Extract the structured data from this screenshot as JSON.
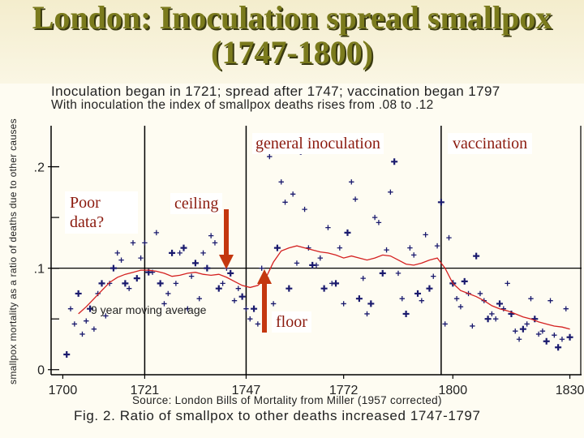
{
  "slide": {
    "title": "London: Inoculation spread smallpox (1747-1800)",
    "subtitle_line1": "Inoculation began in 1721; spread after 1747; vaccination began 1797",
    "subtitle_line2": "With inoculation the index of smallpox deaths rises from .08 to .12",
    "source": "Source: London Bills of Mortality from Miller (1957 corrected)",
    "figure_caption": "Fig. 2. Ratio of smallpox to other deaths increased 1747-1797"
  },
  "annotations": {
    "general_inoculation": "general inoculation",
    "vaccination": "vaccination",
    "poor_data": "Poor data?",
    "ceiling": "ceiling",
    "floor": "floor",
    "moving_average": "9 year moving average"
  },
  "colors": {
    "title": "#7b7b1d",
    "marker": "#1a1a6e",
    "moving_average_line": "#d42020",
    "annotation_text": "#8b1a0e",
    "arrow": "#c4370f"
  },
  "chart_data": {
    "type": "scatter",
    "title": "",
    "ylabel": "smallpox mortality as a ratio of deaths due to other causes",
    "xlabel": "",
    "x_ticks": [
      1700,
      1721,
      1747,
      1772,
      1800,
      1830
    ],
    "y_ticks": [
      {
        "value": 0,
        "label": "0"
      },
      {
        "value": 0.1,
        "label": ".1"
      },
      {
        "value": 0.2,
        "label": ".2"
      }
    ],
    "xlim": [
      1697,
      1833
    ],
    "ylim": [
      -0.005,
      0.25
    ],
    "vertical_lines": [
      1721,
      1747,
      1797
    ],
    "horizontal_line": 0.1,
    "grid": false,
    "series": [
      {
        "name": "",
        "marker": "+",
        "points": [
          [
            1701,
            0.015
          ],
          [
            1702,
            0.06
          ],
          [
            1703,
            0.045
          ],
          [
            1704,
            0.075
          ],
          [
            1705,
            0.035
          ],
          [
            1706,
            0.048
          ],
          [
            1707,
            0.06
          ],
          [
            1708,
            0.04
          ],
          [
            1709,
            0.075
          ],
          [
            1710,
            0.085
          ],
          [
            1711,
            0.053
          ],
          [
            1712,
            0.085
          ],
          [
            1713,
            0.1
          ],
          [
            1714,
            0.115
          ],
          [
            1715,
            0.108
          ],
          [
            1716,
            0.085
          ],
          [
            1717,
            0.08
          ],
          [
            1718,
            0.125
          ],
          [
            1719,
            0.09
          ],
          [
            1720,
            0.11
          ],
          [
            1721,
            0.125
          ],
          [
            1722,
            0.096
          ],
          [
            1723,
            0.096
          ],
          [
            1724,
            0.135
          ],
          [
            1725,
            0.085
          ],
          [
            1726,
            0.065
          ],
          [
            1727,
            0.075
          ],
          [
            1728,
            0.115
          ],
          [
            1729,
            0.085
          ],
          [
            1730,
            0.115
          ],
          [
            1731,
            0.12
          ],
          [
            1732,
            0.06
          ],
          [
            1733,
            0.092
          ],
          [
            1734,
            0.105
          ],
          [
            1735,
            0.07
          ],
          [
            1736,
            0.115
          ],
          [
            1737,
            0.1
          ],
          [
            1738,
            0.132
          ],
          [
            1739,
            0.125
          ],
          [
            1740,
            0.08
          ],
          [
            1741,
            0.085
          ],
          [
            1742,
            0.1
          ],
          [
            1743,
            0.095
          ],
          [
            1744,
            0.068
          ],
          [
            1745,
            0.08
          ],
          [
            1746,
            0.072
          ],
          [
            1747,
            0.06
          ],
          [
            1748,
            0.05
          ],
          [
            1749,
            0.06
          ],
          [
            1750,
            0.045
          ],
          [
            1751,
            0.1
          ],
          [
            1752,
            0.09
          ],
          [
            1753,
            0.21
          ],
          [
            1754,
            0.065
          ],
          [
            1755,
            0.12
          ],
          [
            1756,
            0.185
          ],
          [
            1757,
            0.165
          ],
          [
            1758,
            0.08
          ],
          [
            1759,
            0.173
          ],
          [
            1760,
            0.105
          ],
          [
            1761,
            0.215
          ],
          [
            1762,
            0.158
          ],
          [
            1763,
            0.12
          ],
          [
            1764,
            0.103
          ],
          [
            1765,
            0.103
          ],
          [
            1766,
            0.11
          ],
          [
            1767,
            0.08
          ],
          [
            1768,
            0.14
          ],
          [
            1769,
            0.085
          ],
          [
            1770,
            0.085
          ],
          [
            1771,
            0.12
          ],
          [
            1772,
            0.065
          ],
          [
            1773,
            0.135
          ],
          [
            1774,
            0.185
          ],
          [
            1775,
            0.168
          ],
          [
            1776,
            0.07
          ],
          [
            1777,
            0.09
          ],
          [
            1778,
            0.055
          ],
          [
            1779,
            0.065
          ],
          [
            1780,
            0.15
          ],
          [
            1781,
            0.145
          ],
          [
            1782,
            0.095
          ],
          [
            1783,
            0.118
          ],
          [
            1784,
            0.175
          ],
          [
            1785,
            0.205
          ],
          [
            1786,
            0.095
          ],
          [
            1787,
            0.07
          ],
          [
            1788,
            0.055
          ],
          [
            1789,
            0.12
          ],
          [
            1790,
            0.113
          ],
          [
            1791,
            0.075
          ],
          [
            1792,
            0.068
          ],
          [
            1793,
            0.133
          ],
          [
            1794,
            0.08
          ],
          [
            1795,
            0.092
          ],
          [
            1796,
            0.122
          ],
          [
            1797,
            0.165
          ],
          [
            1798,
            0.045
          ],
          [
            1799,
            0.13
          ],
          [
            1800,
            0.085
          ],
          [
            1801,
            0.07
          ],
          [
            1802,
            0.062
          ],
          [
            1803,
            0.087
          ],
          [
            1804,
            0.075
          ],
          [
            1805,
            0.043
          ],
          [
            1806,
            0.112
          ],
          [
            1807,
            0.075
          ],
          [
            1808,
            0.068
          ],
          [
            1809,
            0.05
          ],
          [
            1810,
            0.055
          ],
          [
            1811,
            0.05
          ],
          [
            1812,
            0.065
          ],
          [
            1813,
            0.06
          ],
          [
            1814,
            0.085
          ],
          [
            1815,
            0.055
          ],
          [
            1816,
            0.038
          ],
          [
            1817,
            0.03
          ],
          [
            1818,
            0.04
          ],
          [
            1819,
            0.045
          ],
          [
            1820,
            0.07
          ],
          [
            1821,
            0.05
          ],
          [
            1822,
            0.035
          ],
          [
            1823,
            0.038
          ],
          [
            1824,
            0.028
          ],
          [
            1825,
            0.068
          ],
          [
            1826,
            0.034
          ],
          [
            1827,
            0.022
          ],
          [
            1828,
            0.03
          ],
          [
            1829,
            0.06
          ],
          [
            1830,
            0.032
          ]
        ]
      },
      {
        "name": "9 year moving average",
        "type": "line",
        "points": [
          [
            1704,
            0.055
          ],
          [
            1706,
            0.062
          ],
          [
            1708,
            0.07
          ],
          [
            1710,
            0.078
          ],
          [
            1712,
            0.086
          ],
          [
            1714,
            0.091
          ],
          [
            1716,
            0.094
          ],
          [
            1718,
            0.096
          ],
          [
            1720,
            0.098
          ],
          [
            1722,
            0.098
          ],
          [
            1724,
            0.097
          ],
          [
            1726,
            0.095
          ],
          [
            1728,
            0.092
          ],
          [
            1730,
            0.093
          ],
          [
            1732,
            0.095
          ],
          [
            1734,
            0.096
          ],
          [
            1736,
            0.094
          ],
          [
            1738,
            0.093
          ],
          [
            1740,
            0.094
          ],
          [
            1742,
            0.091
          ],
          [
            1744,
            0.087
          ],
          [
            1746,
            0.083
          ],
          [
            1748,
            0.081
          ],
          [
            1750,
            0.083
          ],
          [
            1752,
            0.09
          ],
          [
            1754,
            0.106
          ],
          [
            1756,
            0.117
          ],
          [
            1758,
            0.12
          ],
          [
            1760,
            0.122
          ],
          [
            1762,
            0.12
          ],
          [
            1764,
            0.118
          ],
          [
            1766,
            0.116
          ],
          [
            1768,
            0.115
          ],
          [
            1770,
            0.113
          ],
          [
            1772,
            0.11
          ],
          [
            1774,
            0.112
          ],
          [
            1776,
            0.11
          ],
          [
            1778,
            0.108
          ],
          [
            1780,
            0.11
          ],
          [
            1782,
            0.113
          ],
          [
            1784,
            0.112
          ],
          [
            1786,
            0.108
          ],
          [
            1788,
            0.104
          ],
          [
            1790,
            0.103
          ],
          [
            1792,
            0.105
          ],
          [
            1794,
            0.108
          ],
          [
            1796,
            0.11
          ],
          [
            1798,
            0.1
          ],
          [
            1800,
            0.085
          ],
          [
            1802,
            0.078
          ],
          [
            1804,
            0.075
          ],
          [
            1806,
            0.072
          ],
          [
            1808,
            0.068
          ],
          [
            1810,
            0.063
          ],
          [
            1812,
            0.06
          ],
          [
            1814,
            0.058
          ],
          [
            1816,
            0.055
          ],
          [
            1818,
            0.052
          ],
          [
            1820,
            0.05
          ],
          [
            1822,
            0.047
          ],
          [
            1824,
            0.045
          ],
          [
            1826,
            0.043
          ],
          [
            1828,
            0.042
          ],
          [
            1830,
            0.04
          ]
        ]
      }
    ]
  }
}
